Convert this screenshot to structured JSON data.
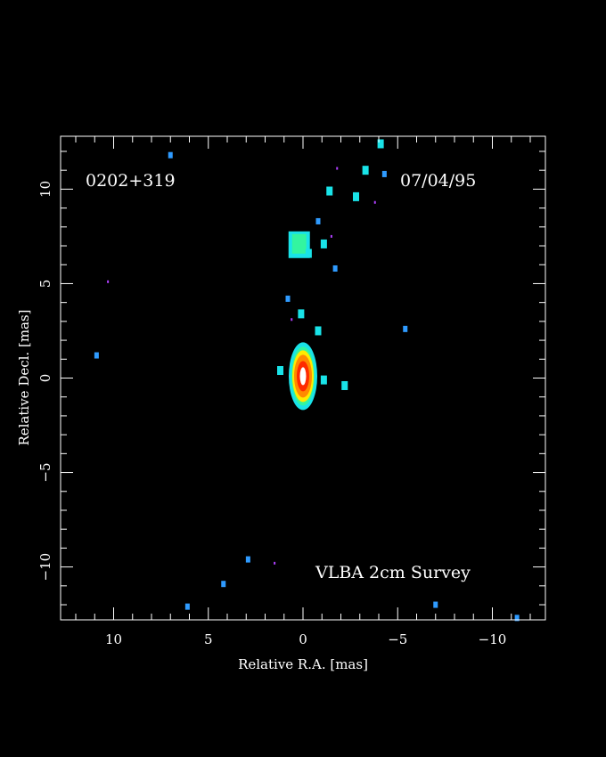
{
  "chart_data": {
    "type": "heatmap",
    "source_label": "0202+319",
    "date_label": "07/04/95",
    "survey_label": "VLBA 2cm Survey",
    "xlabel": "Relative R.A. [mas]",
    "ylabel": "Relative Decl. [mas]",
    "xlim": [
      12.8,
      -12.8
    ],
    "ylim": [
      -12.8,
      12.8
    ],
    "x_ticks": [
      {
        "value": 10,
        "label": "10"
      },
      {
        "value": 5,
        "label": "5"
      },
      {
        "value": 0,
        "label": "0"
      },
      {
        "value": -5,
        "label": "−5"
      },
      {
        "value": -10,
        "label": "−10"
      }
    ],
    "y_ticks": [
      {
        "value": 10,
        "label": "10"
      },
      {
        "value": 5,
        "label": "5"
      },
      {
        "value": 0,
        "label": "0"
      },
      {
        "value": -5,
        "label": "−5"
      },
      {
        "value": -10,
        "label": "−10"
      }
    ],
    "grid": false,
    "colors": {
      "background": "#000000",
      "frame": "#ffffff",
      "level_blue": "#2f9bff",
      "level_cyan": "#19e3e8",
      "level_green": "#33f5a0",
      "level_yellow": "#ffea00",
      "level_orange": "#ff8a00",
      "level_red": "#ff2a00",
      "level_peak": "#ffffff",
      "noise_magenta": "#b040ff"
    },
    "core": {
      "x": 0.0,
      "y": 0.1
    },
    "components": [
      {
        "x": 0.2,
        "y": 7.2,
        "level": "green"
      },
      {
        "x": -0.3,
        "y": 6.6,
        "level": "cyan"
      },
      {
        "x": 0.1,
        "y": 3.4,
        "level": "cyan"
      },
      {
        "x": 0.8,
        "y": 4.2,
        "level": "blue"
      },
      {
        "x": -1.4,
        "y": 9.9,
        "level": "cyan"
      },
      {
        "x": -1.7,
        "y": 5.8,
        "level": "blue"
      },
      {
        "x": -0.8,
        "y": 8.3,
        "level": "blue"
      },
      {
        "x": -1.1,
        "y": 7.1,
        "level": "cyan"
      },
      {
        "x": -2.8,
        "y": 9.6,
        "level": "cyan"
      },
      {
        "x": -3.3,
        "y": 11.0,
        "level": "cyan"
      },
      {
        "x": -4.1,
        "y": 12.4,
        "level": "cyan"
      },
      {
        "x": -4.3,
        "y": 10.8,
        "level": "blue"
      },
      {
        "x": -0.8,
        "y": 2.5,
        "level": "cyan"
      },
      {
        "x": -2.2,
        "y": -0.4,
        "level": "cyan"
      },
      {
        "x": 1.2,
        "y": 0.4,
        "level": "cyan"
      },
      {
        "x": -1.1,
        "y": -0.1,
        "level": "cyan"
      },
      {
        "x": -5.4,
        "y": 2.6,
        "level": "blue"
      },
      {
        "x": 7.0,
        "y": 11.8,
        "level": "blue"
      },
      {
        "x": 10.9,
        "y": 1.2,
        "level": "blue"
      },
      {
        "x": 2.9,
        "y": -9.6,
        "level": "blue"
      },
      {
        "x": 4.2,
        "y": -10.9,
        "level": "blue"
      },
      {
        "x": 6.1,
        "y": -12.1,
        "level": "blue"
      },
      {
        "x": -7.0,
        "y": -12.0,
        "level": "blue"
      },
      {
        "x": -11.3,
        "y": -12.7,
        "level": "blue"
      },
      {
        "x": 1.5,
        "y": -9.8,
        "level": "magenta"
      },
      {
        "x": 10.3,
        "y": 5.1,
        "level": "magenta"
      },
      {
        "x": -3.8,
        "y": 9.3,
        "level": "magenta"
      },
      {
        "x": -1.8,
        "y": 11.1,
        "level": "magenta"
      },
      {
        "x": -1.5,
        "y": 7.5,
        "level": "magenta"
      },
      {
        "x": 0.6,
        "y": 3.1,
        "level": "magenta"
      }
    ]
  }
}
